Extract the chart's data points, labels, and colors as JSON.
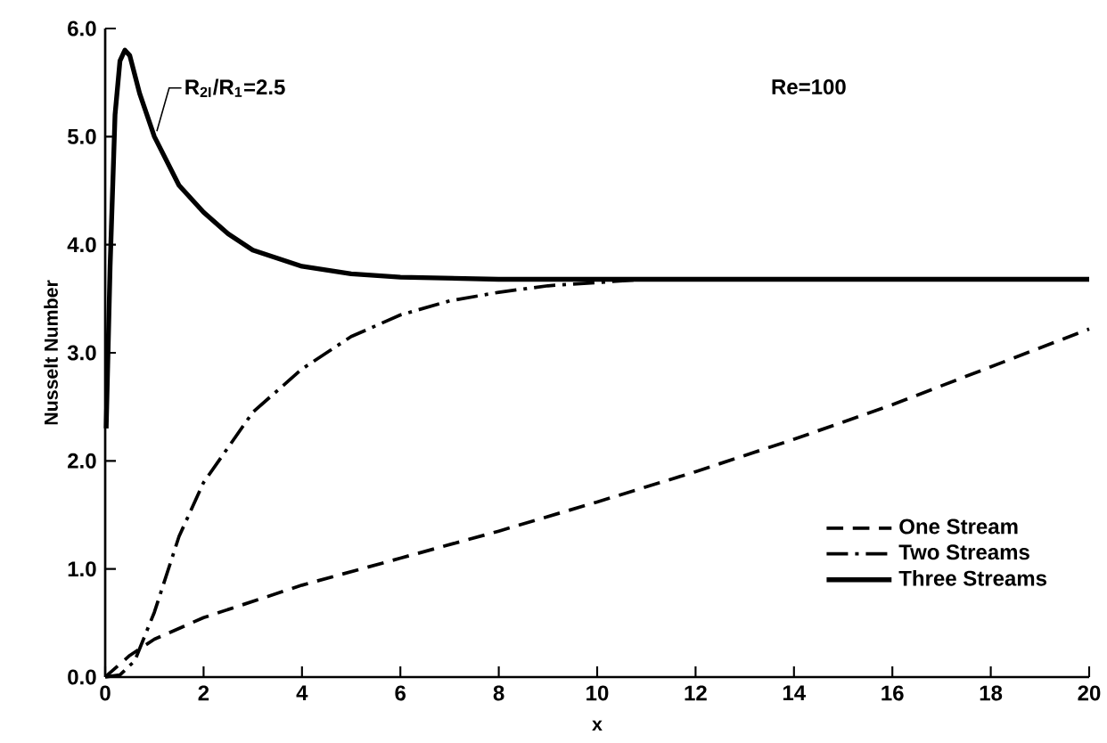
{
  "chart_data": {
    "type": "line",
    "xlabel": "x",
    "ylabel": "Nusselt Number",
    "xlim": [
      0,
      20
    ],
    "ylim": [
      0,
      6
    ],
    "xticks": [
      0,
      2,
      4,
      6,
      8,
      10,
      12,
      14,
      16,
      18,
      20
    ],
    "yticks": [
      {
        "value": 0,
        "label": "0.0"
      },
      {
        "value": 1,
        "label": "1.0"
      },
      {
        "value": 2,
        "label": "2.0"
      },
      {
        "value": 3,
        "label": "3.0"
      },
      {
        "value": 4,
        "label": "4.0"
      },
      {
        "value": 5,
        "label": "5.0"
      },
      {
        "value": 6,
        "label": "6.0"
      }
    ],
    "legend": "bottom right",
    "grid": false,
    "marker": "none",
    "annotations": [
      {
        "text": "R$_{2I}$/R$_{1}$=2.5",
        "x": 1.05,
        "y": 5.05
      },
      "Re=100"
    ],
    "series": [
      {
        "name": "One Stream",
        "color": "#000000",
        "line_style": "dashed",
        "x": [
          0,
          0.5,
          1,
          2,
          4,
          6,
          8,
          10,
          12,
          14,
          16,
          18,
          20
        ],
        "values": [
          0,
          0.2,
          0.35,
          0.55,
          0.85,
          1.1,
          1.35,
          1.62,
          1.9,
          2.2,
          2.52,
          2.87,
          3.22
        ]
      },
      {
        "name": "Two Streams",
        "color": "#000000",
        "line_style": "dashdot",
        "x": [
          0,
          0.3,
          0.6,
          1,
          1.5,
          2,
          3,
          4,
          5,
          6,
          7,
          8,
          9,
          10,
          11,
          20
        ],
        "values": [
          0,
          0.02,
          0.15,
          0.6,
          1.3,
          1.8,
          2.45,
          2.85,
          3.15,
          3.35,
          3.48,
          3.56,
          3.62,
          3.65,
          3.68,
          3.68
        ]
      },
      {
        "name": "Three Streams",
        "color": "#000000",
        "line_style": "solid",
        "x": [
          0.02,
          0.1,
          0.2,
          0.3,
          0.4,
          0.5,
          0.7,
          1,
          1.5,
          2,
          2.5,
          3,
          4,
          5,
          6,
          8,
          12,
          20
        ],
        "values": [
          2.3,
          3.8,
          5.2,
          5.7,
          5.8,
          5.75,
          5.4,
          5.0,
          4.55,
          4.3,
          4.1,
          3.95,
          3.8,
          3.73,
          3.7,
          3.68,
          3.68,
          3.68
        ]
      }
    ]
  }
}
